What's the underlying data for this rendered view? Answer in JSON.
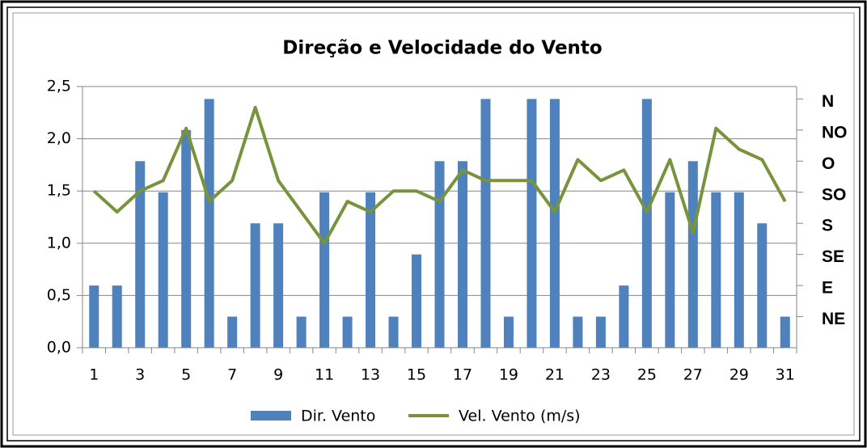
{
  "chart_data": {
    "type": "bar+line",
    "title": "Direção e Velocidade do Vento",
    "categories": [
      1,
      null,
      3,
      null,
      5,
      null,
      7,
      null,
      9,
      null,
      11,
      null,
      13,
      null,
      15,
      null,
      17,
      null,
      19,
      null,
      21,
      null,
      23,
      null,
      25,
      null,
      27,
      null,
      29,
      null,
      31
    ],
    "series": [
      {
        "name": "Dir. Vento",
        "color": "#4f81bd",
        "axis": "y2",
        "kind": "bar",
        "values": [
          2,
          2,
          6,
          5,
          7,
          8,
          1,
          4,
          4,
          1,
          5,
          1,
          5,
          1,
          3,
          6,
          6,
          8,
          1,
          8,
          8,
          1,
          1,
          2,
          8,
          5,
          6,
          5,
          5,
          4,
          1
        ]
      },
      {
        "name": "Vel. Vento  (m/s)",
        "color": "#77933c",
        "kind": "line",
        "values": [
          1.5,
          1.3,
          1.5,
          1.6,
          2.1,
          1.4,
          1.6,
          2.3,
          1.6,
          1.3,
          1.0,
          1.4,
          1.3,
          1.5,
          1.5,
          1.4,
          1.7,
          1.6,
          1.6,
          1.6,
          1.3,
          1.8,
          1.6,
          1.7,
          1.3,
          1.8,
          1.1,
          2.1,
          1.9,
          1.8,
          1.4
        ]
      }
    ],
    "ylim": [
      0,
      2.5
    ],
    "yticks": [
      {
        "value": 0,
        "label": "0,0"
      },
      {
        "value": 0.5,
        "label": "0,5"
      },
      {
        "value": 1,
        "label": "1,0"
      },
      {
        "value": 1.5,
        "label": "1,5"
      },
      {
        "value": 2,
        "label": "2,0"
      },
      {
        "value": 2.5,
        "label": "2,5"
      }
    ],
    "y2lim": [
      0,
      8.4
    ],
    "y2ticks": [
      {
        "value": 1,
        "label": "NE"
      },
      {
        "value": 2,
        "label": "E"
      },
      {
        "value": 3,
        "label": "SE"
      },
      {
        "value": 4,
        "label": "S"
      },
      {
        "value": 5,
        "label": "SO"
      },
      {
        "value": 6,
        "label": "O"
      },
      {
        "value": 7,
        "label": "NO"
      },
      {
        "value": 8,
        "label": "N"
      }
    ],
    "grid": true,
    "legend": "bottom"
  }
}
